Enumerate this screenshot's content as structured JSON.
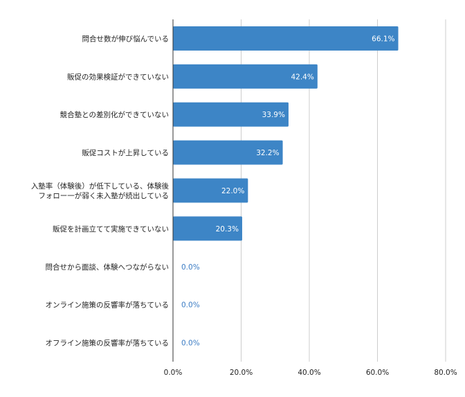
{
  "chart_data": {
    "type": "bar",
    "orientation": "horizontal",
    "categories": [
      [
        "問合せ数が伸び悩んでいる"
      ],
      [
        "販促の効果検証ができていない"
      ],
      [
        "競合塾との差別化ができていない"
      ],
      [
        "販促コストが上昇している"
      ],
      [
        "入塾率（体験後）が低下している、体験後",
        "フォロー一が弱く未入塾が続出している"
      ],
      [
        "販促を計画立てて実施できていない"
      ],
      [
        "問合せから面談、体験へつながらない"
      ],
      [
        "オンライン施策の反響率が落ちている"
      ],
      [
        "オフライン施策の反響率が落ちている"
      ]
    ],
    "values": [
      66.1,
      42.4,
      33.9,
      32.2,
      22.0,
      20.3,
      0.0,
      0.0,
      0.0
    ],
    "value_labels": [
      "66.1%",
      "42.4%",
      "33.9%",
      "32.2%",
      "22.0%",
      "20.3%",
      "0.0%",
      "0.0%",
      "0.0%"
    ],
    "xlim": [
      0,
      80
    ],
    "xticks": [
      0,
      20,
      40,
      60,
      80
    ],
    "xtick_labels": [
      "0.0%",
      "20.0%",
      "40.0%",
      "60.0%",
      "80.0%"
    ],
    "grid": true,
    "colors": {
      "bar": "#3d85c6",
      "grid": "#cccccc",
      "axis": "#333333",
      "label_inside": "#ffffff",
      "label_outside": "#3b7cc4"
    }
  }
}
